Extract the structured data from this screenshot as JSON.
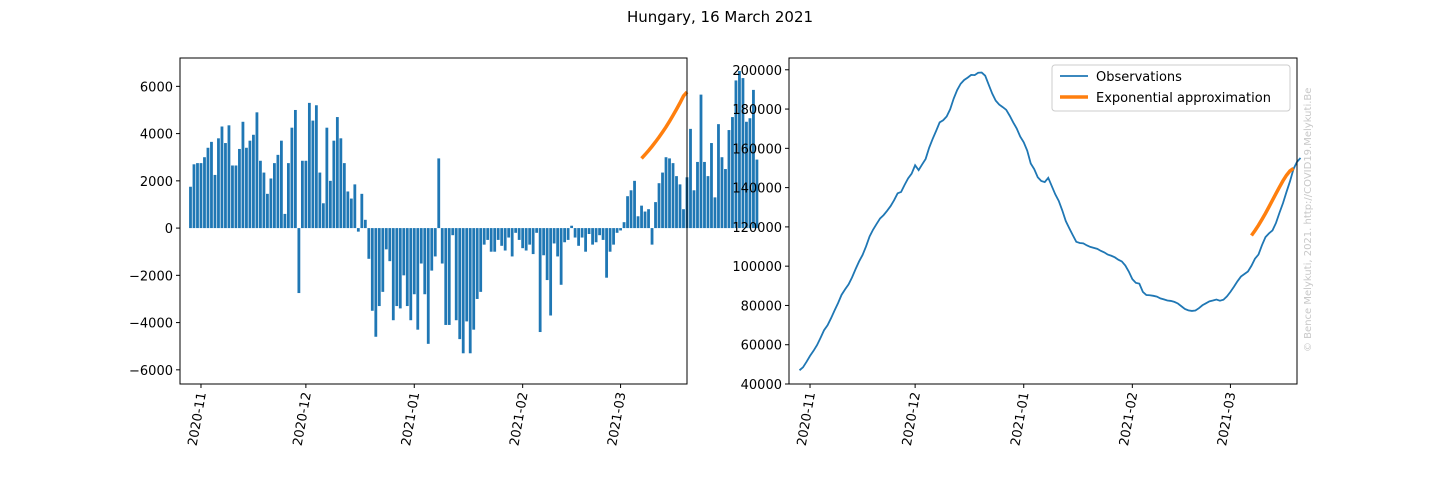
{
  "figure": {
    "title": "Hungary, 16 March 2021",
    "watermark": "© Bence Melykuti, 2021. http://COVID19.Melykuti.Be"
  },
  "chart_data": [
    {
      "type": "bar",
      "name": "daily-change",
      "title": "",
      "xlabel": "",
      "ylabel": "",
      "x_start": "2020-10-29",
      "x_range": [
        "2020-10-26",
        "2021-03-20"
      ],
      "ylim": [
        -6600,
        7200
      ],
      "yticks": [
        -6000,
        -4000,
        -2000,
        0,
        2000,
        4000,
        6000
      ],
      "ytick_labels": [
        "−6000",
        "−4000",
        "−2000",
        "0",
        "2000",
        "4000",
        "6000"
      ],
      "xticks": [
        "2020-11-01",
        "2020-12-01",
        "2021-01-01",
        "2021-02-01",
        "2021-03-01"
      ],
      "xtick_labels": [
        "2020-11",
        "2020-12",
        "2021-01",
        "2021-02",
        "2021-03"
      ],
      "bar_color": "#1f77b4",
      "values": [
        1750,
        2700,
        2750,
        2750,
        3000,
        3400,
        3650,
        2250,
        3800,
        4300,
        3600,
        4350,
        2650,
        2650,
        3350,
        4500,
        3400,
        3700,
        3950,
        4900,
        2850,
        2350,
        1450,
        2100,
        2750,
        3100,
        3700,
        600,
        2750,
        4250,
        5000,
        -2750,
        2850,
        2850,
        5300,
        4550,
        5200,
        2350,
        1050,
        4250,
        2000,
        3700,
        4700,
        3800,
        2750,
        1550,
        1250,
        1850,
        -150,
        1450,
        350,
        -1300,
        -3500,
        -4600,
        -3300,
        -2700,
        -900,
        -1400,
        -3900,
        -3300,
        -3400,
        -2000,
        -3300,
        -3900,
        -2800,
        -4300,
        -1500,
        -2800,
        -4900,
        -1800,
        -1200,
        2950,
        -1500,
        -4100,
        -4100,
        -300,
        -3900,
        -4700,
        -5300,
        -3950,
        -5300,
        -4300,
        -3000,
        -2700,
        -700,
        -500,
        -1000,
        -1000,
        -500,
        -750,
        -950,
        -400,
        -1200,
        -200,
        -500,
        -850,
        -950,
        -700,
        -1100,
        -200,
        -4400,
        -1150,
        -2200,
        -3700,
        -650,
        -1200,
        -2400,
        -600,
        -500,
        100,
        -400,
        -750,
        -400,
        -1000,
        -250,
        -700,
        -600,
        -300,
        -500,
        -2100,
        -1000,
        -700,
        -200,
        -100,
        250,
        1350,
        1600,
        2000,
        500,
        950,
        700,
        800,
        -700,
        1100,
        1900,
        2350,
        3000,
        2950,
        2750,
        2200,
        1850,
        800,
        2150,
        4200,
        1600,
        2800,
        5650,
        2800,
        2200,
        3600,
        1300,
        4400,
        3000,
        2500,
        4150,
        4700,
        6250,
        6650,
        6350,
        4500,
        4650,
        5850,
        2900
      ],
      "approximation": {
        "label": "Exponential approximation",
        "color": "#ff7f0e",
        "start": "2021-03-07",
        "values": [
          2950,
          3110,
          3280,
          3460,
          3650,
          3850,
          4060,
          4280,
          4520,
          4770,
          5030,
          5300,
          5590,
          5760
        ]
      }
    },
    {
      "type": "line",
      "name": "active-cases",
      "title": "",
      "xlabel": "",
      "ylabel": "",
      "x_start": "2020-10-29",
      "x_range": [
        "2020-10-26",
        "2021-03-20"
      ],
      "ylim": [
        40000,
        206000
      ],
      "yticks": [
        40000,
        60000,
        80000,
        100000,
        120000,
        140000,
        160000,
        180000,
        200000
      ],
      "ytick_labels": [
        "40000",
        "60000",
        "80000",
        "100000",
        "120000",
        "140000",
        "160000",
        "180000",
        "200000"
      ],
      "xticks": [
        "2020-11-01",
        "2020-12-01",
        "2021-01-01",
        "2021-02-01",
        "2021-03-01"
      ],
      "xtick_labels": [
        "2020-11",
        "2020-12",
        "2021-01",
        "2021-02",
        "2021-03"
      ],
      "legend_position": "upper right",
      "series": [
        {
          "name": "Observations",
          "color": "#1f77b4",
          "values": [
            47000,
            48500,
            51300,
            54300,
            56900,
            59800,
            63500,
            67400,
            69900,
            73500,
            77400,
            81200,
            85400,
            88200,
            90700,
            94300,
            98500,
            102400,
            105700,
            110100,
            115100,
            118600,
            121500,
            124300,
            126000,
            128200,
            130600,
            133600,
            137100,
            137800,
            141400,
            144700,
            147100,
            151400,
            148900,
            151800,
            154600,
            160300,
            164800,
            168900,
            173200,
            174300,
            176200,
            179900,
            185300,
            189700,
            192900,
            194800,
            196000,
            197400,
            197300,
            198500,
            198600,
            197000,
            192400,
            187900,
            184300,
            182300,
            181000,
            179600,
            176600,
            173200,
            170100,
            166000,
            163100,
            158800,
            152300,
            149400,
            145300,
            143400,
            142800,
            145000,
            140800,
            136600,
            133200,
            128400,
            123000,
            119300,
            115800,
            112400,
            111800,
            111600,
            110600,
            109800,
            109300,
            108800,
            107800,
            107000,
            105900,
            105300,
            104500,
            103300,
            102400,
            100300,
            97200,
            93400,
            91500,
            91100,
            86900,
            85300,
            85200,
            84900,
            84500,
            83600,
            83100,
            82500,
            82300,
            81800,
            81000,
            79600,
            78200,
            77500,
            77200,
            77400,
            78600,
            80100,
            81100,
            82100,
            82500,
            83000,
            82400,
            82900,
            84600,
            86900,
            89500,
            92300,
            94700,
            96000,
            97300,
            100200,
            103800,
            105900,
            110700,
            114800,
            116700,
            118200,
            122000,
            127200,
            132100,
            137800,
            143200,
            149500,
            153100,
            155100
          ]
        }
      ],
      "approximation": {
        "label": "Exponential approximation",
        "color": "#ff7f0e",
        "start": "2021-03-07",
        "values": [
          115600,
          118100,
          120800,
          123800,
          126900,
          130200,
          133600,
          137000,
          140300,
          143500,
          146300,
          148500,
          149800
        ]
      }
    }
  ]
}
